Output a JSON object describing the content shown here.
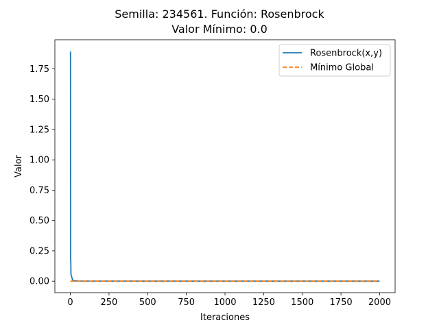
{
  "chart_data": {
    "type": "line",
    "title_line1": "Semilla: 234561. Función: Rosenbrock",
    "title_line2": "Valor Mínimo: 0.0",
    "xlabel": "Iteraciones",
    "ylabel": "Valor",
    "xlim": [
      -100,
      2100
    ],
    "ylim": [
      -0.095,
      1.99
    ],
    "xticks": [
      0,
      250,
      500,
      750,
      1000,
      1250,
      1500,
      1750,
      2000
    ],
    "xtick_labels": [
      "0",
      "250",
      "500",
      "750",
      "1000",
      "1250",
      "1500",
      "1750",
      "2000"
    ],
    "yticks": [
      0.0,
      0.25,
      0.5,
      0.75,
      1.0,
      1.25,
      1.5,
      1.75
    ],
    "ytick_labels": [
      "0.00",
      "0.25",
      "0.50",
      "0.75",
      "1.00",
      "1.25",
      "1.50",
      "1.75"
    ],
    "grid": false,
    "legend_position": "top-right",
    "series": [
      {
        "name": "Rosenbrock(x,y)",
        "color": "#1f77b4",
        "style": "solid",
        "x": [
          0,
          1,
          2,
          3,
          4,
          5,
          8,
          10,
          12,
          15,
          20,
          30,
          50,
          100,
          200,
          500,
          1000,
          1500,
          1999
        ],
        "y": [
          1.89,
          1.89,
          0.17,
          0.16,
          0.06,
          0.05,
          0.04,
          0.03,
          0.02,
          0.01,
          0.005,
          0.002,
          0.001,
          0.0005,
          0.0002,
          0.0001,
          0.0,
          0.0,
          0.0
        ]
      },
      {
        "name": "Mínimo Global",
        "color": "#ff7f0e",
        "style": "dashed",
        "x": [
          0,
          1999
        ],
        "y": [
          0.0,
          0.0
        ]
      }
    ]
  }
}
